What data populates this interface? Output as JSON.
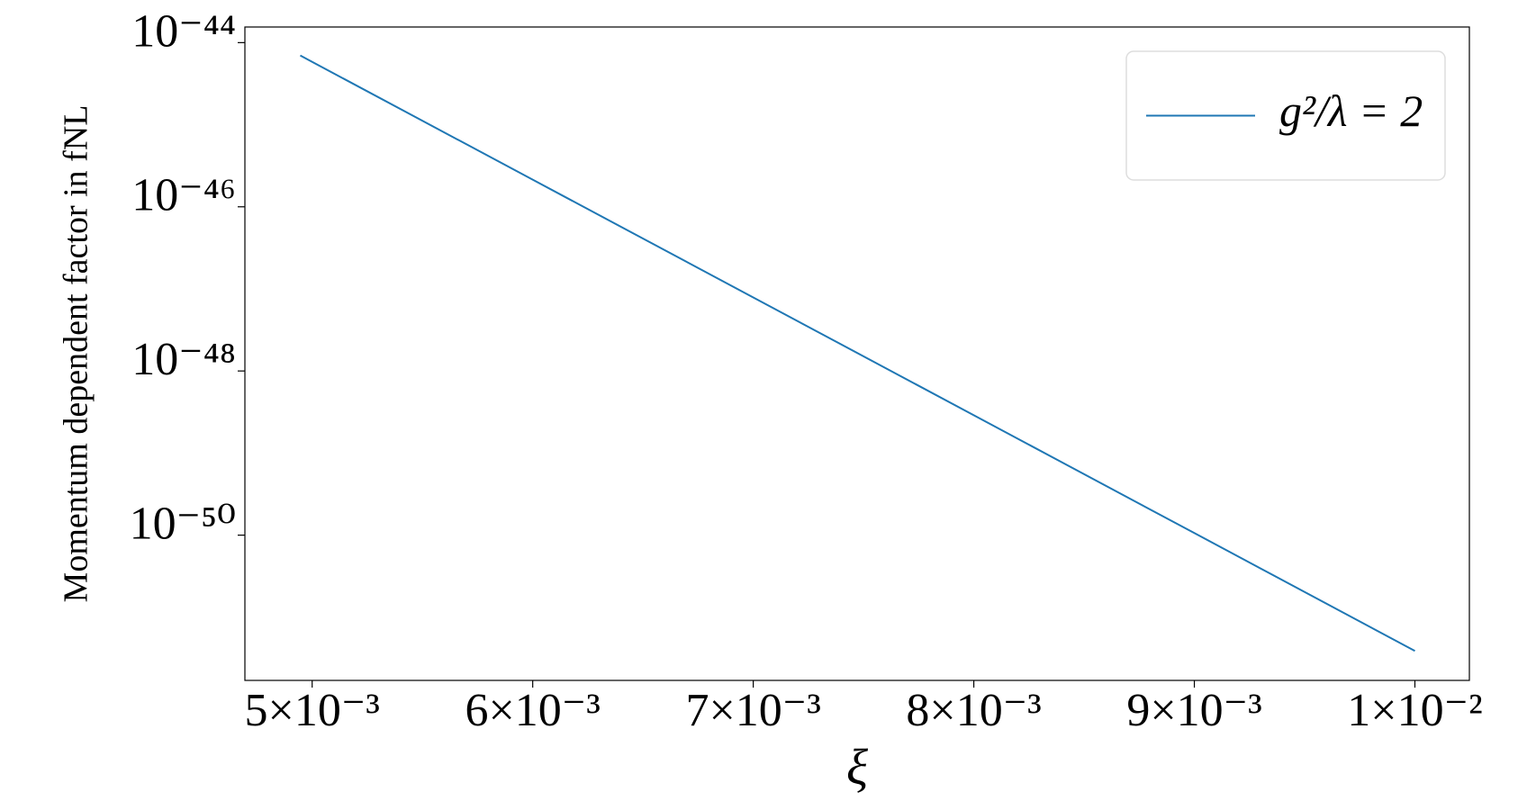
{
  "chart_data": {
    "type": "line",
    "xlabel": "ξ",
    "ylabel": "Momentum dependent factor in fNL",
    "x": [
      0.004946,
      0.005,
      0.006,
      0.007,
      0.008,
      0.009,
      0.01
    ],
    "series": [
      {
        "name": "g²/λ = 2",
        "color": "#1f77b4",
        "values": [
          6.97e-45,
          5.83e-45,
          2.14e-46,
          7.87e-48,
          2.89e-49,
          1.06e-50,
          3.89e-52
        ]
      }
    ],
    "xlim": [
      0.004695,
      0.010247
    ],
    "ylim": [
      1.55e-44,
      1.7e-52
    ],
    "yscale": "log",
    "xticks": [
      {
        "value": 0.005,
        "label": "5×10⁻³"
      },
      {
        "value": 0.006,
        "label": "6×10⁻³"
      },
      {
        "value": 0.007,
        "label": "7×10⁻³"
      },
      {
        "value": 0.008,
        "label": "8×10⁻³"
      },
      {
        "value": 0.009,
        "label": "9×10⁻³"
      },
      {
        "value": 0.01,
        "label": "1×10⁻²"
      }
    ],
    "yticks": [
      {
        "value": 1e-44,
        "label": "10⁻⁴⁴"
      },
      {
        "value": 1e-46,
        "label": "10⁻⁴⁶"
      },
      {
        "value": 1e-48,
        "label": "10⁻⁴⁸"
      },
      {
        "value": 1e-50,
        "label": "10⁻⁵⁰"
      }
    ],
    "grid": false,
    "legend": "upper right"
  }
}
